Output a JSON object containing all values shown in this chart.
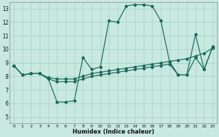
{
  "xlabel": "Humidex (Indice chaleur)",
  "xlim": [
    -0.5,
    23.5
  ],
  "ylim": [
    4.5,
    13.5
  ],
  "yticks": [
    5,
    6,
    7,
    8,
    9,
    10,
    11,
    12,
    13
  ],
  "xticks": [
    0,
    1,
    2,
    3,
    4,
    5,
    6,
    7,
    8,
    9,
    10,
    11,
    12,
    13,
    14,
    15,
    16,
    17,
    18,
    19,
    20,
    21,
    22,
    23
  ],
  "background_color": "#c8e8e0",
  "line_color": "#1a6b5a",
  "grid_color": "#a8d4cc",
  "lines": [
    {
      "x": [
        0,
        1,
        2,
        3,
        4,
        5,
        6,
        7,
        8,
        9,
        10,
        11,
        12,
        13,
        14,
        15,
        16,
        17,
        18,
        19,
        20,
        21,
        22,
        23
      ],
      "y": [
        8.8,
        8.1,
        8.2,
        8.2,
        7.8,
        6.1,
        6.1,
        6.2,
        9.4,
        8.5,
        8.7,
        12.1,
        12.0,
        13.2,
        13.3,
        13.3,
        13.2,
        12.1,
        9.1,
        8.1,
        8.1,
        11.1,
        8.5,
        10.2
      ]
    },
    {
      "x": [
        0,
        1,
        2,
        3,
        4,
        5,
        6,
        7,
        8,
        9,
        10,
        11,
        12,
        13,
        14,
        15,
        16,
        17,
        18,
        19,
        20,
        21,
        22,
        23
      ],
      "y": [
        8.8,
        8.1,
        8.2,
        8.2,
        7.9,
        7.8,
        7.8,
        7.8,
        8.0,
        8.2,
        8.3,
        8.4,
        8.5,
        8.6,
        8.7,
        8.8,
        8.9,
        9.0,
        9.1,
        9.2,
        9.3,
        9.5,
        9.7,
        10.1
      ]
    },
    {
      "x": [
        0,
        1,
        2,
        3,
        4,
        5,
        6,
        7,
        8,
        9,
        10,
        11,
        12,
        13,
        14,
        15,
        16,
        17,
        18,
        19,
        20,
        21,
        22,
        23
      ],
      "y": [
        8.8,
        8.1,
        8.2,
        8.2,
        7.8,
        7.6,
        7.6,
        7.6,
        7.8,
        8.0,
        8.1,
        8.2,
        8.3,
        8.4,
        8.5,
        8.6,
        8.7,
        8.8,
        8.9,
        8.1,
        8.1,
        9.4,
        8.5,
        10.2
      ]
    }
  ]
}
